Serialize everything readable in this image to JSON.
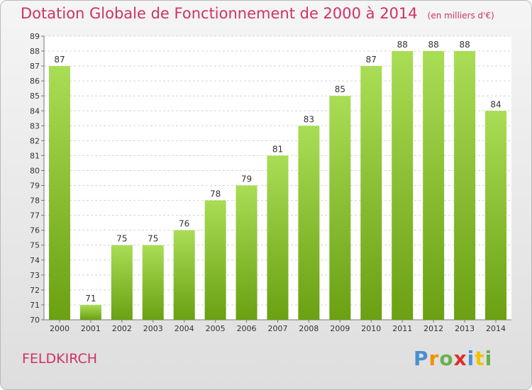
{
  "title": "Dotation Globale de Fonctionnement de 2000 à 2014",
  "unit_note": "(en milliers d'€)",
  "commune": "FELDKIRCH",
  "logo_text": "Proxiti",
  "logo_colors": [
    "#4a90d0",
    "#f29000",
    "#6ab04c",
    "#d9302c",
    "#4a90d0",
    "#f2c200",
    "#6ab04c"
  ],
  "colors": {
    "accent": "#cc3366",
    "bar_light": "#a9dd55",
    "bar_dark": "#6aa012"
  },
  "chart_data": {
    "type": "bar",
    "title": "Dotation Globale de Fonctionnement de 2000 à 2014",
    "xlabel": "",
    "ylabel": "",
    "categories": [
      "2000",
      "2001",
      "2002",
      "2003",
      "2004",
      "2005",
      "2006",
      "2007",
      "2008",
      "2009",
      "2010",
      "2011",
      "2012",
      "2013",
      "2014"
    ],
    "values": [
      87,
      71,
      75,
      75,
      76,
      78,
      79,
      81,
      83,
      85,
      87,
      88,
      88,
      88,
      84
    ],
    "ylim": [
      70,
      89
    ],
    "yticks": [
      70,
      71,
      72,
      73,
      74,
      75,
      76,
      77,
      78,
      79,
      80,
      81,
      82,
      83,
      84,
      85,
      86,
      87,
      88,
      89
    ],
    "grid": true,
    "legend": "none"
  }
}
